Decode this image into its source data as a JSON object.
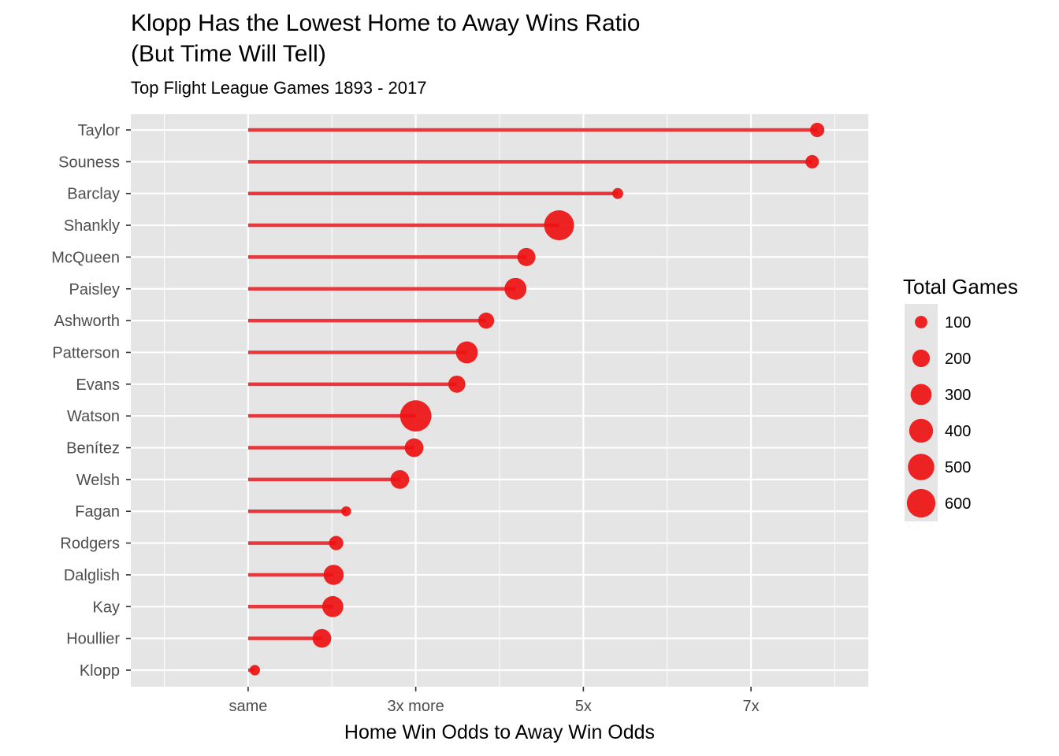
{
  "chart_data": {
    "type": "lollipop",
    "title": "Klopp Has the Lowest Home to Away Wins Ratio",
    "title_line2": "(But Time Will Tell)",
    "subtitle": "Top Flight League Games 1893 - 2017",
    "xlabel": "Home Win Odds to Away Win Odds",
    "ylabel": "",
    "x_ticks": [
      {
        "value": 1,
        "label": "same"
      },
      {
        "value": 3,
        "label": "3x more"
      },
      {
        "value": 5,
        "label": "5x"
      },
      {
        "value": 7,
        "label": "7x"
      }
    ],
    "xlim": [
      -0.4,
      8.4
    ],
    "baseline": 1,
    "categories": [
      "Taylor",
      "Souness",
      "Barclay",
      "Shankly",
      "McQueen",
      "Paisley",
      "Ashworth",
      "Patterson",
      "Evans",
      "Watson",
      "Benítez",
      "Welsh",
      "Fagan",
      "Rodgers",
      "Dalglish",
      "Kay",
      "Houllier",
      "Klopp"
    ],
    "series": [
      {
        "values": [
          7.79,
          7.73,
          5.41,
          4.71,
          4.32,
          4.19,
          3.84,
          3.61,
          3.49,
          3.0,
          2.98,
          2.81,
          2.17,
          2.05,
          2.02,
          2.01,
          1.88,
          1.08
        ],
        "sizes": [
          130,
          115,
          80,
          670,
          215,
          330,
          165,
          330,
          190,
          740,
          230,
          230,
          70,
          130,
          270,
          300,
          230,
          75
        ]
      }
    ],
    "legend": {
      "title": "Total Games",
      "position": "right",
      "entries": [
        {
          "value": 100,
          "label": "100"
        },
        {
          "value": 200,
          "label": "200"
        },
        {
          "value": 300,
          "label": "300"
        },
        {
          "value": 400,
          "label": "400"
        },
        {
          "value": 500,
          "label": "500"
        },
        {
          "value": 600,
          "label": "600"
        }
      ]
    },
    "grid": true,
    "colors": {
      "panel": "#e5e5e5",
      "grid": "#ffffff",
      "line": "#e8383d",
      "point": "#ee1111"
    }
  }
}
